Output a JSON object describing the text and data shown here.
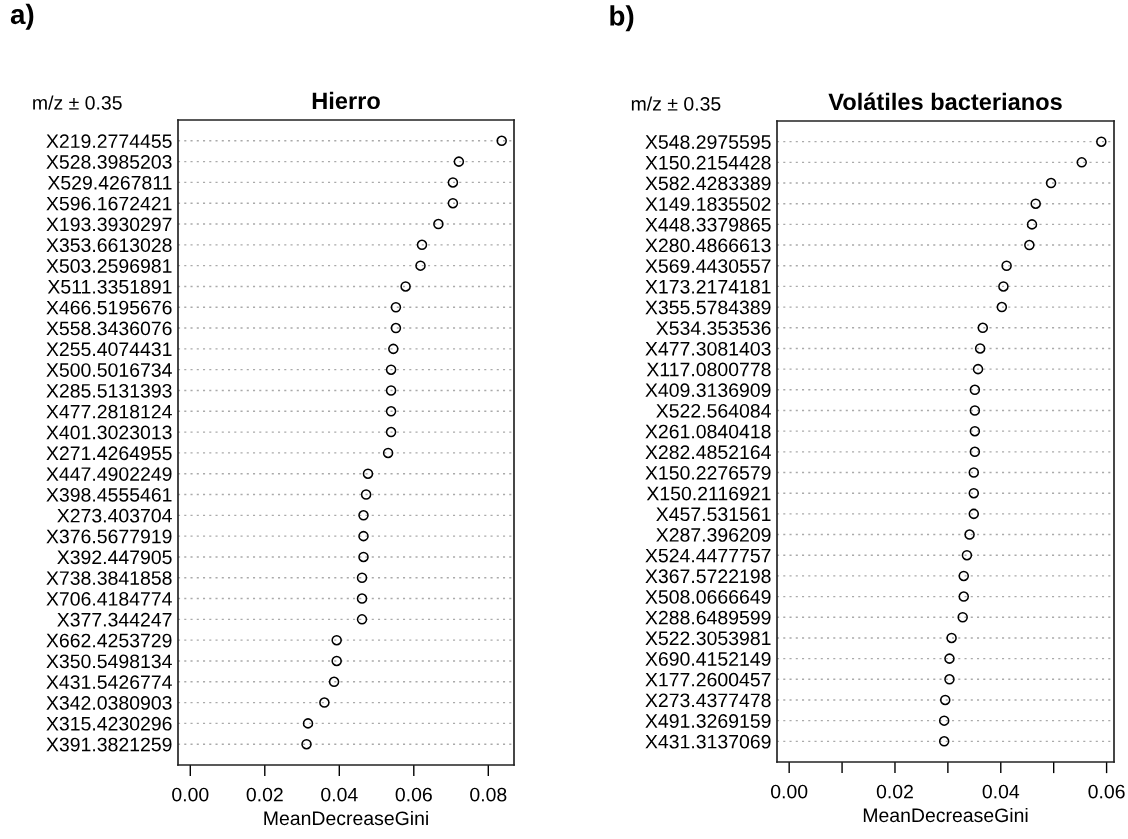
{
  "chart_data": [
    {
      "type": "scatter",
      "title": "Hierro",
      "ylabel": "m/z ± 0.35",
      "xlabel": "MeanDecreaseGini",
      "annotations": [
        "a)"
      ],
      "categories": [
        "X219.2774455",
        "X528.3985203",
        "X529.4267811",
        "X596.1672421",
        "X193.3930297",
        "X353.6613028",
        "X503.2596981",
        "X511.3351891",
        "X466.5195676",
        "X558.3436076",
        "X255.4074431",
        "X500.5016734",
        "X285.5131393",
        "X477.2818124",
        "X401.3023013",
        "X271.4264955",
        "X447.4902249",
        "X398.4555461",
        "X273.403704",
        "X376.5677919",
        "X392.447905",
        "X738.3841858",
        "X706.4184774",
        "X377.344247",
        "X662.4253729",
        "X350.5498134",
        "X431.5426774",
        "X342.0380903",
        "X315.4230296",
        "X391.3821259"
      ],
      "values": [
        0.0836,
        0.0721,
        0.0705,
        0.0705,
        0.0666,
        0.0622,
        0.0618,
        0.0578,
        0.0552,
        0.0552,
        0.0545,
        0.0539,
        0.0539,
        0.0539,
        0.0539,
        0.0531,
        0.0477,
        0.0472,
        0.0465,
        0.0465,
        0.0465,
        0.0461,
        0.0461,
        0.0461,
        0.0393,
        0.0393,
        0.0386,
        0.036,
        0.0316,
        0.0312
      ],
      "color": "#000000",
      "marker": "circle",
      "grid": "y",
      "orientation": "horizontal",
      "xlim": [
        -0.0033,
        0.0869
      ],
      "xticks": [
        {
          "value": 0.0,
          "label": "0.00"
        },
        {
          "value": 0.02,
          "label": "0.02"
        },
        {
          "value": 0.04,
          "label": "0.04"
        },
        {
          "value": 0.06,
          "label": "0.06"
        },
        {
          "value": 0.08,
          "label": "0.08"
        }
      ]
    },
    {
      "type": "scatter",
      "title": "Volátiles bacterianos",
      "ylabel": "m/z ± 0.35",
      "xlabel": "MeanDecreaseGini",
      "annotations": [
        "b)"
      ],
      "categories": [
        "X548.2975595",
        "X150.2154428",
        "X582.4283389",
        "X149.1835502",
        "X448.3379865",
        "X280.4866613",
        "X569.4430557",
        "X173.2174181",
        "X355.5784389",
        "X534.353536",
        "X477.3081403",
        "X117.0800778",
        "X409.3136909",
        "X522.564084",
        "X261.0840418",
        "X282.4852164",
        "X150.2276579",
        "X150.2116921",
        "X457.531561",
        "X287.396209",
        "X524.4477757",
        "X367.5722198",
        "X508.0666649",
        "X288.6489599",
        "X522.3053981",
        "X690.4152149",
        "X177.2600457",
        "X273.4377478",
        "X491.3269159",
        "X431.3137069"
      ],
      "values": [
        0.059,
        0.0553,
        0.0495,
        0.0466,
        0.0459,
        0.0454,
        0.0411,
        0.0405,
        0.0402,
        0.0366,
        0.0361,
        0.0357,
        0.0351,
        0.0351,
        0.0351,
        0.0351,
        0.0349,
        0.0349,
        0.0349,
        0.0341,
        0.0336,
        0.033,
        0.033,
        0.0328,
        0.0307,
        0.0303,
        0.0303,
        0.0295,
        0.0293,
        0.0293
      ],
      "color": "#000000",
      "marker": "circle",
      "grid": "y",
      "orientation": "horizontal",
      "xlim": [
        -0.0023,
        0.0614
      ],
      "xticks": [
        {
          "value": 0.0,
          "label": "0.00"
        },
        {
          "value": 0.01,
          "label": null
        },
        {
          "value": 0.02,
          "label": "0.02"
        },
        {
          "value": 0.03,
          "label": null
        },
        {
          "value": 0.04,
          "label": "0.04"
        },
        {
          "value": 0.05,
          "label": null
        },
        {
          "value": 0.06,
          "label": "0.06"
        }
      ]
    }
  ]
}
